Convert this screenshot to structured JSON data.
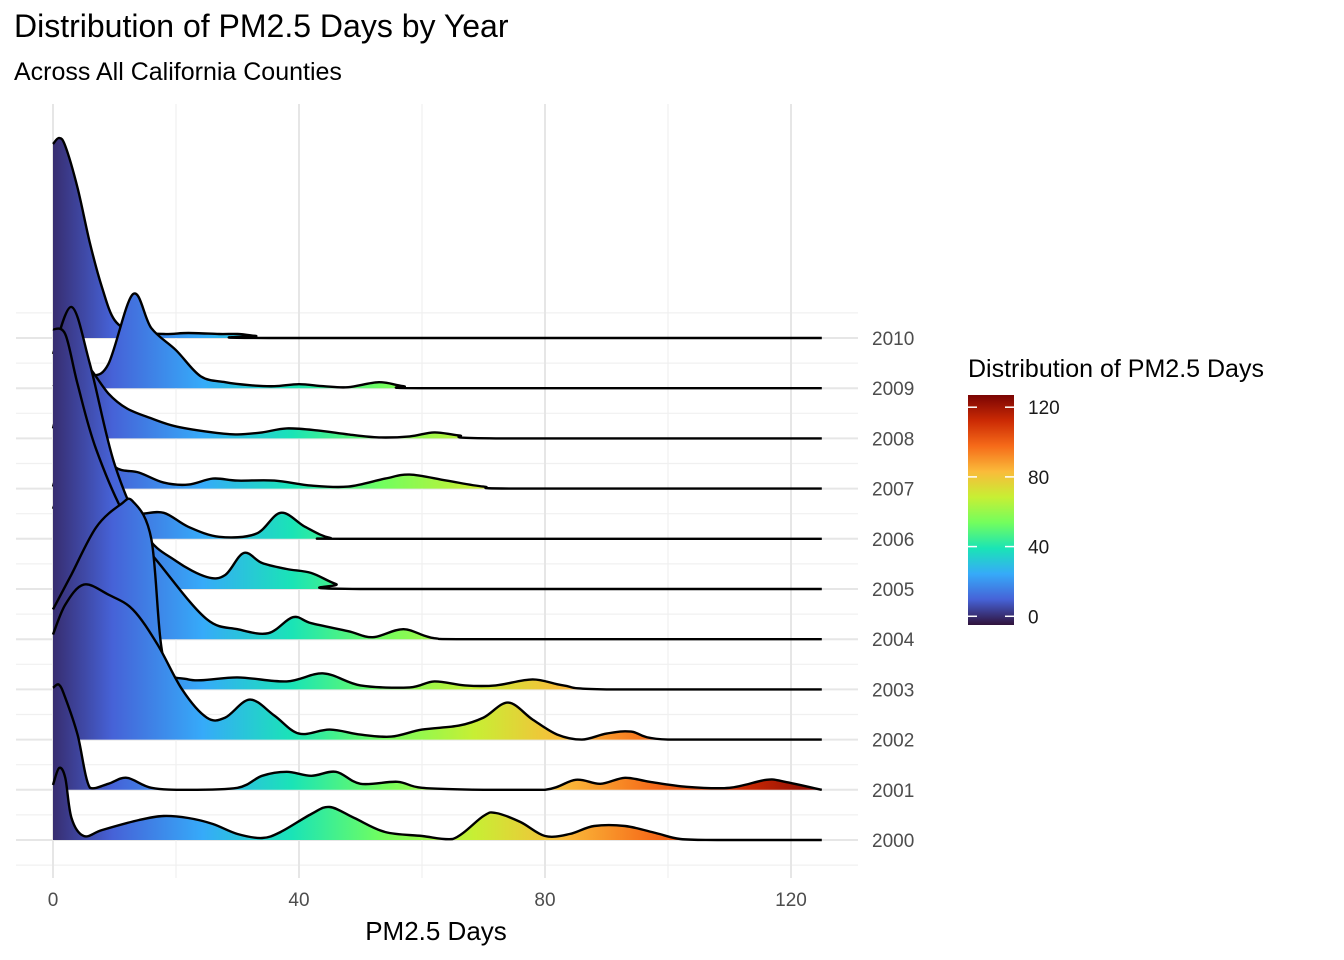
{
  "chart_data": {
    "type": "ridgeline",
    "title": "Distribution of PM2.5 Days by Year",
    "subtitle": "Across All California Counties",
    "xlabel": "PM2.5 Days",
    "ylabel": "",
    "xlim": [
      -6,
      131
    ],
    "x_ticks": [
      0,
      40,
      80,
      120
    ],
    "grid": true,
    "legend": {
      "title": "Distribution of PM2.5 Days",
      "position": "right",
      "palette": "turbo",
      "range": [
        -5,
        127
      ],
      "ticks": [
        0,
        40,
        80,
        120
      ],
      "colors": [
        "#30123b",
        "#4662d7",
        "#36aaf9",
        "#1ae4b6",
        "#72fe5e",
        "#c7ef34",
        "#fabb3a",
        "#f66b19",
        "#cb2a04",
        "#7a0403"
      ]
    },
    "series": [
      {
        "name": "2000",
        "x_max": 125,
        "points": [
          [
            0,
            0.55
          ],
          [
            1,
            0.72
          ],
          [
            2,
            0.62
          ],
          [
            3,
            0.22
          ],
          [
            5,
            0.04
          ],
          [
            8,
            0.1
          ],
          [
            14,
            0.2
          ],
          [
            18,
            0.24
          ],
          [
            22,
            0.22
          ],
          [
            26,
            0.16
          ],
          [
            30,
            0.06
          ],
          [
            34,
            0.02
          ],
          [
            37,
            0.08
          ],
          [
            42,
            0.26
          ],
          [
            45,
            0.33
          ],
          [
            49,
            0.22
          ],
          [
            54,
            0.08
          ],
          [
            60,
            0.04
          ],
          [
            65,
            0.01
          ],
          [
            70,
            0.24
          ],
          [
            72,
            0.27
          ],
          [
            76,
            0.18
          ],
          [
            80,
            0.04
          ],
          [
            84,
            0.06
          ],
          [
            88,
            0.14
          ],
          [
            93,
            0.14
          ],
          [
            98,
            0.07
          ],
          [
            102,
            0.01
          ],
          [
            108,
            0
          ],
          [
            125,
            0
          ]
        ]
      },
      {
        "name": "2001",
        "x_max": 125,
        "points": [
          [
            0,
            1.02
          ],
          [
            1,
            1.05
          ],
          [
            2,
            0.92
          ],
          [
            4,
            0.55
          ],
          [
            6,
            0.02
          ],
          [
            9,
            0.06
          ],
          [
            12,
            0.12
          ],
          [
            16,
            0.02
          ],
          [
            22,
            0
          ],
          [
            30,
            0.02
          ],
          [
            34,
            0.14
          ],
          [
            38,
            0.18
          ],
          [
            42,
            0.14
          ],
          [
            46,
            0.18
          ],
          [
            50,
            0.06
          ],
          [
            56,
            0.08
          ],
          [
            60,
            0.02
          ],
          [
            70,
            0
          ],
          [
            80,
            0
          ],
          [
            85,
            0.1
          ],
          [
            89,
            0.06
          ],
          [
            93,
            0.12
          ],
          [
            97,
            0.08
          ],
          [
            103,
            0.03
          ],
          [
            110,
            0.02
          ],
          [
            116,
            0.1
          ],
          [
            119,
            0.08
          ],
          [
            125,
            0
          ]
        ]
      },
      {
        "name": "2002",
        "x_max": 125,
        "points": [
          [
            0,
            1.05
          ],
          [
            2,
            1.35
          ],
          [
            5,
            1.55
          ],
          [
            9,
            1.45
          ],
          [
            13,
            1.3
          ],
          [
            17,
            0.95
          ],
          [
            21,
            0.5
          ],
          [
            25,
            0.22
          ],
          [
            28,
            0.22
          ],
          [
            32,
            0.4
          ],
          [
            36,
            0.24
          ],
          [
            40,
            0.06
          ],
          [
            45,
            0.1
          ],
          [
            50,
            0.05
          ],
          [
            55,
            0.03
          ],
          [
            60,
            0.1
          ],
          [
            66,
            0.14
          ],
          [
            70,
            0.22
          ],
          [
            74,
            0.37
          ],
          [
            78,
            0.2
          ],
          [
            82,
            0.05
          ],
          [
            86,
            0
          ],
          [
            90,
            0.06
          ],
          [
            94,
            0.08
          ],
          [
            100,
            0
          ],
          [
            125,
            0
          ]
        ]
      },
      {
        "name": "2003",
        "x_max": 125,
        "points": [
          [
            0,
            0.8
          ],
          [
            3,
            1.15
          ],
          [
            7,
            1.62
          ],
          [
            11,
            1.85
          ],
          [
            13,
            1.88
          ],
          [
            16,
            1.5
          ],
          [
            18,
            0.3
          ],
          [
            22,
            0.1
          ],
          [
            30,
            0.12
          ],
          [
            38,
            0.08
          ],
          [
            44,
            0.16
          ],
          [
            50,
            0.04
          ],
          [
            58,
            0.02
          ],
          [
            62,
            0.08
          ],
          [
            67,
            0.04
          ],
          [
            72,
            0.04
          ],
          [
            78,
            0.1
          ],
          [
            83,
            0.04
          ],
          [
            90,
            0
          ],
          [
            125,
            0
          ]
        ]
      },
      {
        "name": "2004",
        "x_max": 125,
        "points": [
          [
            0,
            3.1
          ],
          [
            2,
            3.05
          ],
          [
            4,
            2.55
          ],
          [
            7,
            1.9
          ],
          [
            12,
            1.2
          ],
          [
            18,
            0.7
          ],
          [
            25,
            0.2
          ],
          [
            30,
            0.1
          ],
          [
            35,
            0.06
          ],
          [
            39,
            0.22
          ],
          [
            42,
            0.16
          ],
          [
            48,
            0.08
          ],
          [
            52,
            0.02
          ],
          [
            57,
            0.1
          ],
          [
            62,
            0.01
          ],
          [
            70,
            0
          ],
          [
            125,
            0
          ]
        ]
      },
      {
        "name": "2005",
        "x_max": 125,
        "points": [
          [
            0,
            2.35
          ],
          [
            3,
            2.82
          ],
          [
            6,
            2.25
          ],
          [
            10,
            1.25
          ],
          [
            15,
            0.55
          ],
          [
            20,
            0.28
          ],
          [
            25,
            0.12
          ],
          [
            28,
            0.14
          ],
          [
            31,
            0.36
          ],
          [
            34,
            0.26
          ],
          [
            38,
            0.2
          ],
          [
            42,
            0.16
          ],
          [
            46,
            0.05
          ],
          [
            50,
            0
          ],
          [
            125,
            0
          ]
        ]
      },
      {
        "name": "2006",
        "x_max": 125,
        "points": [
          [
            0,
            0.3
          ],
          [
            2,
            0.6
          ],
          [
            4,
            0.68
          ],
          [
            7,
            0.5
          ],
          [
            10,
            0.28
          ],
          [
            14,
            0.25
          ],
          [
            18,
            0.26
          ],
          [
            22,
            0.12
          ],
          [
            27,
            0.02
          ],
          [
            33,
            0.05
          ],
          [
            37,
            0.26
          ],
          [
            41,
            0.12
          ],
          [
            45,
            0.01
          ],
          [
            50,
            0
          ],
          [
            125,
            0
          ]
        ]
      },
      {
        "name": "2007",
        "x_max": 125,
        "points": [
          [
            0,
            0.02
          ],
          [
            2,
            0.42
          ],
          [
            4,
            0.62
          ],
          [
            7,
            0.52
          ],
          [
            10,
            0.22
          ],
          [
            14,
            0.16
          ],
          [
            18,
            0.06
          ],
          [
            22,
            0.04
          ],
          [
            26,
            0.1
          ],
          [
            30,
            0.08
          ],
          [
            36,
            0.08
          ],
          [
            42,
            0.03
          ],
          [
            48,
            0.02
          ],
          [
            54,
            0.1
          ],
          [
            58,
            0.14
          ],
          [
            64,
            0.08
          ],
          [
            70,
            0.02
          ],
          [
            76,
            0
          ],
          [
            125,
            0
          ]
        ]
      },
      {
        "name": "2008",
        "x_max": 125,
        "points": [
          [
            0,
            0.1
          ],
          [
            2,
            0.55
          ],
          [
            4,
            0.78
          ],
          [
            6,
            0.7
          ],
          [
            9,
            0.45
          ],
          [
            12,
            0.3
          ],
          [
            16,
            0.2
          ],
          [
            20,
            0.12
          ],
          [
            26,
            0.06
          ],
          [
            30,
            0.04
          ],
          [
            34,
            0.06
          ],
          [
            38,
            0.1
          ],
          [
            43,
            0.08
          ],
          [
            48,
            0.04
          ],
          [
            53,
            0.01
          ],
          [
            58,
            0.02
          ],
          [
            62,
            0.06
          ],
          [
            66,
            0.03
          ],
          [
            72,
            0
          ],
          [
            125,
            0
          ]
        ]
      },
      {
        "name": "2009",
        "x_max": 125,
        "points": [
          [
            0,
            0.02
          ],
          [
            3,
            0.1
          ],
          [
            6,
            0.12
          ],
          [
            9,
            0.24
          ],
          [
            13,
            0.94
          ],
          [
            16,
            0.6
          ],
          [
            20,
            0.38
          ],
          [
            24,
            0.12
          ],
          [
            28,
            0.06
          ],
          [
            32,
            0.03
          ],
          [
            36,
            0.02
          ],
          [
            40,
            0.04
          ],
          [
            44,
            0.02
          ],
          [
            48,
            0.01
          ],
          [
            53,
            0.06
          ],
          [
            57,
            0.02
          ],
          [
            62,
            0
          ],
          [
            125,
            0
          ]
        ]
      },
      {
        "name": "2010",
        "x_max": 125,
        "points": [
          [
            0,
            1.94
          ],
          [
            1,
            2.0
          ],
          [
            2,
            1.92
          ],
          [
            4,
            1.5
          ],
          [
            6,
            0.95
          ],
          [
            8,
            0.5
          ],
          [
            10,
            0.18
          ],
          [
            13,
            0.07
          ],
          [
            18,
            0.04
          ],
          [
            22,
            0.05
          ],
          [
            27,
            0.04
          ],
          [
            30,
            0.04
          ],
          [
            33,
            0.02
          ],
          [
            36,
            0
          ],
          [
            125,
            0
          ]
        ]
      }
    ]
  }
}
